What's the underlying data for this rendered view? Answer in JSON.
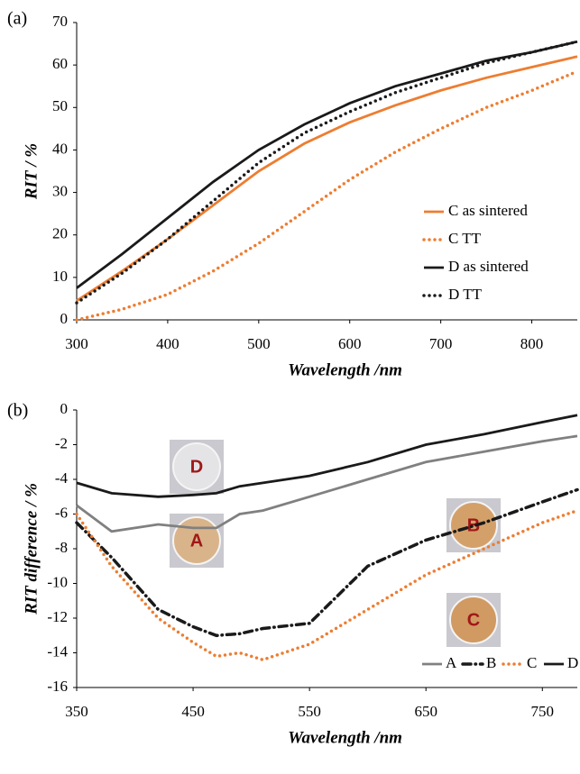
{
  "chart_data": [
    {
      "type": "line",
      "panel_label": "(a)",
      "xlabel": "Wavelength /nm",
      "ylabel": "RIT / %",
      "x": [
        300,
        350,
        400,
        450,
        500,
        550,
        600,
        650,
        700,
        750,
        800,
        850
      ],
      "xlim": [
        300,
        850
      ],
      "xticks": [
        300,
        400,
        500,
        600,
        700,
        800
      ],
      "ylim": [
        0,
        70
      ],
      "yticks": [
        0,
        10,
        20,
        30,
        40,
        50,
        60,
        70
      ],
      "legend": "center right",
      "series": [
        {
          "name": "C as sintered",
          "color": "#ed7d31",
          "style": "solid",
          "values": [
            4.5,
            11.5,
            19,
            27,
            35,
            41.5,
            46.5,
            50.5,
            54,
            57,
            59.5,
            62
          ]
        },
        {
          "name": "C TT",
          "color": "#ed7d31",
          "style": "dotted",
          "values": [
            0,
            2.5,
            6,
            11.5,
            18,
            25.5,
            33,
            39.5,
            45,
            50,
            54,
            58.5
          ]
        },
        {
          "name": "D as sintered",
          "color": "#1a1a1a",
          "style": "solid",
          "values": [
            7.5,
            15.5,
            24,
            32.5,
            40,
            46,
            51,
            55,
            58,
            61,
            63,
            65.5
          ]
        },
        {
          "name": "D TT",
          "color": "#1a1a1a",
          "style": "dotted",
          "values": [
            4,
            11,
            19,
            28,
            37,
            44,
            49,
            53.5,
            57,
            60.5,
            63,
            65.5
          ]
        }
      ]
    },
    {
      "type": "line",
      "panel_label": "(b)",
      "xlabel": "Wavelength /nm",
      "ylabel": "RIT difference / %",
      "x": [
        350,
        380,
        420,
        450,
        470,
        490,
        510,
        550,
        600,
        650,
        700,
        750,
        780
      ],
      "xlim": [
        350,
        780
      ],
      "xticks": [
        350,
        450,
        550,
        650,
        750
      ],
      "ylim": [
        -16,
        0
      ],
      "yticks": [
        -16,
        -14,
        -12,
        -10,
        -8,
        -6,
        -4,
        -2,
        0
      ],
      "legend": "lower right",
      "series": [
        {
          "name": "A",
          "color": "#808080",
          "style": "solid",
          "values": [
            -5.5,
            -7,
            -6.6,
            -6.8,
            -6.8,
            -6.0,
            -5.8,
            -5.0,
            -4,
            -3,
            -2.4,
            -1.8,
            -1.5
          ]
        },
        {
          "name": "B",
          "color": "#1a1a1a",
          "style": "dashdot",
          "values": [
            -6.5,
            -8.5,
            -11.5,
            -12.5,
            -13,
            -12.9,
            -12.6,
            -12.3,
            -9,
            -7.5,
            -6.5,
            -5.3,
            -4.6
          ]
        },
        {
          "name": "C",
          "color": "#ed7d31",
          "style": "dotted",
          "values": [
            -6,
            -9,
            -12,
            -13.4,
            -14.2,
            -14.0,
            -14.4,
            -13.5,
            -11.5,
            -9.5,
            -8,
            -6.5,
            -5.8
          ]
        },
        {
          "name": "D",
          "color": "#1a1a1a",
          "style": "solid",
          "values": [
            -4.2,
            -4.8,
            -5.0,
            -4.9,
            -4.8,
            -4.4,
            -4.2,
            -3.8,
            -3,
            -2,
            -1.4,
            -0.7,
            -0.3
          ]
        }
      ],
      "insets": [
        {
          "label": "D"
        },
        {
          "label": "A"
        },
        {
          "label": "B"
        },
        {
          "label": "C"
        }
      ]
    }
  ]
}
